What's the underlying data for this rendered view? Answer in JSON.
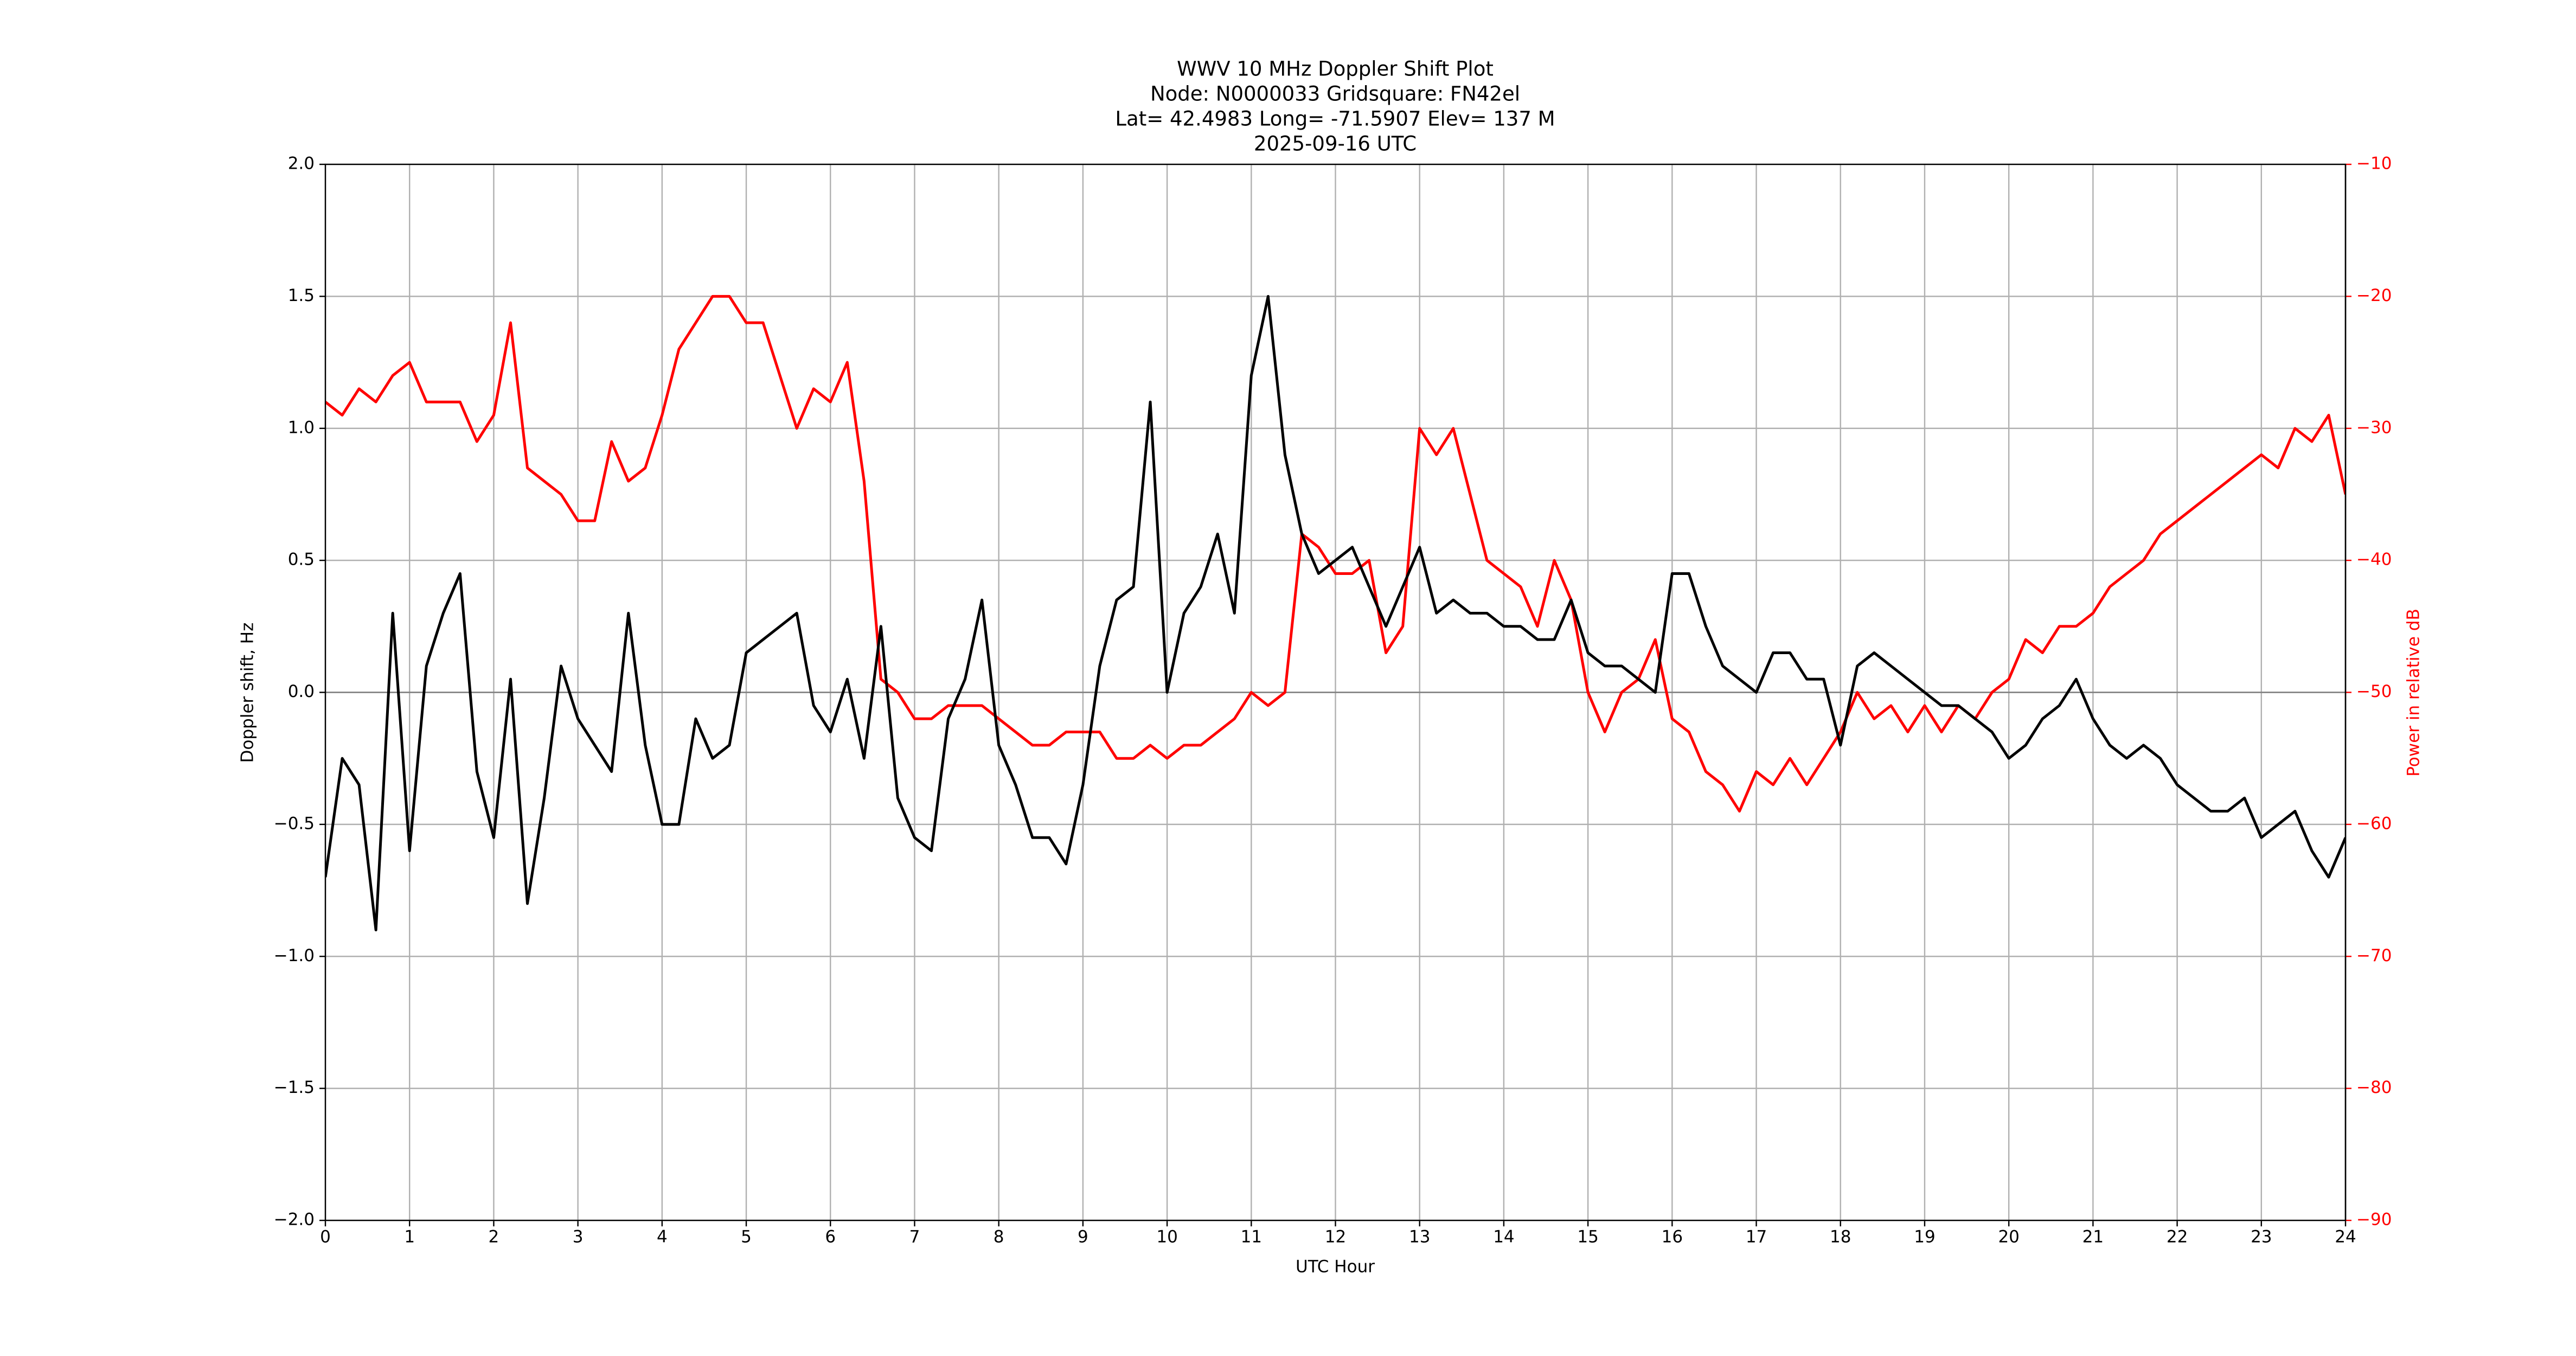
{
  "chart_data": {
    "type": "line",
    "title": [
      "WWV 10 MHz Doppler Shift Plot",
      "Node:  N0000033     Gridsquare:  FN42el",
      "Lat= 42.4983    Long= -71.5907    Elev= 137 M",
      "2025-09-16  UTC"
    ],
    "xlabel": "UTC Hour",
    "ylabel": "Doppler shift, Hz",
    "y2label": "Power in relative dB",
    "x": [
      0,
      0.2,
      0.4,
      0.6,
      0.8,
      1,
      1.2,
      1.4,
      1.6,
      1.8,
      2,
      2.2,
      2.4,
      2.6,
      2.8,
      3,
      3.2,
      3.4,
      3.6,
      3.8,
      4,
      4.2,
      4.4,
      4.6,
      4.8,
      5,
      5.2,
      5.4,
      5.6,
      5.8,
      6,
      6.2,
      6.4,
      6.6,
      6.8,
      7,
      7.2,
      7.4,
      7.6,
      7.8,
      8,
      8.2,
      8.4,
      8.6,
      8.8,
      9,
      9.2,
      9.4,
      9.6,
      9.8,
      10,
      10.2,
      10.4,
      10.6,
      10.8,
      11,
      11.2,
      11.4,
      11.6,
      11.8,
      12,
      12.2,
      12.4,
      12.6,
      12.8,
      13,
      13.2,
      13.4,
      13.6,
      13.8,
      14,
      14.2,
      14.4,
      14.6,
      14.8,
      15,
      15.2,
      15.4,
      15.6,
      15.8,
      16,
      16.2,
      16.4,
      16.6,
      16.8,
      17,
      17.2,
      17.4,
      17.6,
      17.8,
      18,
      18.2,
      18.4,
      18.6,
      18.8,
      19,
      19.2,
      19.4,
      19.6,
      19.8,
      20,
      20.2,
      20.4,
      20.6,
      20.8,
      21,
      21.2,
      21.4,
      21.6,
      21.8,
      22,
      22.2,
      22.4,
      22.6,
      22.8,
      23,
      23.2,
      23.4,
      23.6,
      23.8,
      24
    ],
    "series": [
      {
        "color": "#000000",
        "values": [
          -0.7,
          -0.25,
          -0.35,
          -0.9,
          0.3,
          -0.6,
          0.1,
          0.3,
          0.45,
          -0.3,
          -0.55,
          0.05,
          -0.8,
          -0.4,
          0.1,
          -0.1,
          -0.2,
          -0.3,
          0.3,
          -0.2,
          -0.5,
          -0.5,
          -0.1,
          -0.25,
          -0.2,
          0.15,
          0.2,
          0.25,
          0.3,
          -0.05,
          -0.15,
          0.05,
          -0.25,
          0.25,
          -0.4,
          -0.55,
          -0.6,
          -0.1,
          0.05,
          0.35,
          -0.2,
          -0.35,
          -0.55,
          -0.55,
          -0.65,
          -0.35,
          0.1,
          0.35,
          0.4,
          1.1,
          0.0,
          0.3,
          0.4,
          0.6,
          0.3,
          1.2,
          1.5,
          0.9,
          0.6,
          0.45,
          0.5,
          0.55,
          0.4,
          0.25,
          0.4,
          0.55,
          0.3,
          0.35,
          0.3,
          0.3,
          0.25,
          0.25,
          0.2,
          0.2,
          0.35,
          0.15,
          0.1,
          0.1,
          0.05,
          0.0,
          0.45,
          0.45,
          0.25,
          0.1,
          0.05,
          0.0,
          0.15,
          0.15,
          0.05,
          0.05,
          -0.2,
          0.1,
          0.15,
          0.1,
          0.05,
          0.0,
          -0.05,
          -0.05,
          -0.1,
          -0.15,
          -0.25,
          -0.2,
          -0.1,
          -0.05,
          0.05,
          -0.1,
          -0.2,
          -0.25,
          -0.2,
          -0.25,
          -0.35,
          -0.4,
          -0.45,
          -0.45,
          -0.4,
          -0.55,
          -0.5,
          -0.45,
          -0.6,
          -0.7,
          -0.55
        ]
      },
      {
        "color": "#ff0000",
        "axis": "y2",
        "values": [
          -28,
          -29,
          -27,
          -28,
          -26,
          -25,
          -28,
          -28,
          -28,
          -31,
          -29,
          -22,
          -33,
          -34,
          -35,
          -37,
          -37,
          -31,
          -34,
          -33,
          -29,
          -24,
          -22,
          -20,
          -20,
          -22,
          -22,
          -26,
          -30,
          -27,
          -28,
          -25,
          -34,
          -49,
          -50,
          -52,
          -52,
          -51,
          -51,
          -51,
          -52,
          -53,
          -54,
          -54,
          -53,
          -53,
          -53,
          -55,
          -55,
          -54,
          -55,
          -54,
          -54,
          -53,
          -52,
          -50,
          -51,
          -50,
          -38,
          -39,
          -41,
          -41,
          -40,
          -47,
          -45,
          -30,
          -32,
          -30,
          -35,
          -40,
          -41,
          -42,
          -45,
          -40,
          -43,
          -50,
          -53,
          -50,
          -49,
          -46,
          -52,
          -53,
          -56,
          -57,
          -59,
          -56,
          -57,
          -55,
          -57,
          -55,
          -53,
          -50,
          -52,
          -51,
          -53,
          -51,
          -53,
          -51,
          -52,
          -50,
          -49,
          -46,
          -47,
          -45,
          -45,
          -44,
          -42,
          -41,
          -40,
          -38,
          -37,
          -36,
          -35,
          -34,
          -33,
          -32,
          -33,
          -30,
          -31,
          -29,
          -35
        ]
      }
    ],
    "xlim": [
      0,
      24
    ],
    "xticks": [
      0,
      1,
      2,
      3,
      4,
      5,
      6,
      7,
      8,
      9,
      10,
      11,
      12,
      13,
      14,
      15,
      16,
      17,
      18,
      19,
      20,
      21,
      22,
      23,
      24
    ],
    "ylim": [
      -2,
      2
    ],
    "yticks": [
      {
        "value": -2,
        "label": "−2.0"
      },
      {
        "value": -1.5,
        "label": "−1.5"
      },
      {
        "value": -1,
        "label": "−1.0"
      },
      {
        "value": -0.5,
        "label": "−0.5"
      },
      {
        "value": 0,
        "label": "0.0"
      },
      {
        "value": 0.5,
        "label": "0.5"
      },
      {
        "value": 1,
        "label": "1.0"
      },
      {
        "value": 1.5,
        "label": "1.5"
      },
      {
        "value": 2,
        "label": "2.0"
      }
    ],
    "y2lim": [
      -90,
      -10
    ],
    "y2ticks": [
      {
        "value": -90,
        "label": "−90"
      },
      {
        "value": -80,
        "label": "−80"
      },
      {
        "value": -70,
        "label": "−70"
      },
      {
        "value": -60,
        "label": "−60"
      },
      {
        "value": -50,
        "label": "−50"
      },
      {
        "value": -40,
        "label": "−40"
      },
      {
        "value": -30,
        "label": "−30"
      },
      {
        "value": -20,
        "label": "−20"
      },
      {
        "value": -10,
        "label": "−10"
      }
    ],
    "y2color": "#ff0000",
    "grid": true,
    "hlines": [
      0
    ]
  }
}
